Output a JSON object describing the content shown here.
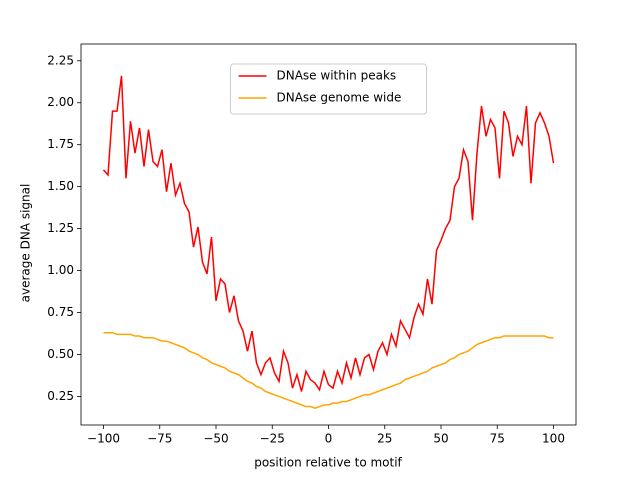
{
  "chart_data": {
    "type": "line",
    "x_label": "position relative to motif",
    "y_label": "average DNA signal",
    "x": [
      -100,
      -98,
      -96,
      -94,
      -92,
      -90,
      -88,
      -86,
      -84,
      -82,
      -80,
      -78,
      -76,
      -74,
      -72,
      -70,
      -68,
      -66,
      -64,
      -62,
      -60,
      -58,
      -56,
      -54,
      -52,
      -50,
      -48,
      -46,
      -44,
      -42,
      -40,
      -38,
      -36,
      -34,
      -32,
      -30,
      -28,
      -26,
      -24,
      -22,
      -20,
      -18,
      -16,
      -14,
      -12,
      -10,
      -8,
      -6,
      -4,
      -2,
      0,
      2,
      4,
      6,
      8,
      10,
      12,
      14,
      16,
      18,
      20,
      22,
      24,
      26,
      28,
      30,
      32,
      34,
      36,
      38,
      40,
      42,
      44,
      46,
      48,
      50,
      52,
      54,
      56,
      58,
      60,
      62,
      64,
      66,
      68,
      70,
      72,
      74,
      76,
      78,
      80,
      82,
      84,
      86,
      88,
      90,
      92,
      94,
      96,
      98,
      100
    ],
    "series": [
      {
        "name": "DNAse within peaks",
        "color": "#ff0000",
        "values": [
          1.6,
          1.57,
          1.95,
          1.95,
          2.16,
          1.55,
          1.89,
          1.7,
          1.85,
          1.62,
          1.84,
          1.65,
          1.62,
          1.72,
          1.47,
          1.64,
          1.45,
          1.52,
          1.4,
          1.35,
          1.14,
          1.26,
          1.05,
          0.98,
          1.2,
          0.82,
          0.95,
          0.92,
          0.75,
          0.85,
          0.7,
          0.64,
          0.52,
          0.64,
          0.45,
          0.38,
          0.45,
          0.48,
          0.39,
          0.34,
          0.52,
          0.45,
          0.3,
          0.38,
          0.28,
          0.4,
          0.35,
          0.33,
          0.29,
          0.4,
          0.32,
          0.3,
          0.4,
          0.33,
          0.45,
          0.36,
          0.48,
          0.38,
          0.48,
          0.5,
          0.41,
          0.52,
          0.57,
          0.5,
          0.62,
          0.55,
          0.7,
          0.65,
          0.6,
          0.72,
          0.8,
          0.74,
          0.95,
          0.8,
          1.12,
          1.18,
          1.25,
          1.3,
          1.5,
          1.55,
          1.72,
          1.65,
          1.3,
          1.7,
          1.98,
          1.8,
          1.9,
          1.85,
          1.55,
          1.95,
          1.88,
          1.68,
          1.8,
          1.75,
          1.98,
          1.52,
          1.88,
          1.94,
          1.88,
          1.8,
          1.64
        ]
      },
      {
        "name": "DNAse genome wide",
        "color": "#ffa500",
        "values": [
          0.63,
          0.63,
          0.63,
          0.62,
          0.62,
          0.62,
          0.62,
          0.61,
          0.61,
          0.6,
          0.6,
          0.6,
          0.59,
          0.58,
          0.58,
          0.57,
          0.56,
          0.55,
          0.54,
          0.52,
          0.51,
          0.5,
          0.48,
          0.47,
          0.45,
          0.44,
          0.43,
          0.42,
          0.4,
          0.39,
          0.38,
          0.36,
          0.34,
          0.33,
          0.31,
          0.3,
          0.28,
          0.27,
          0.26,
          0.25,
          0.24,
          0.23,
          0.22,
          0.21,
          0.2,
          0.19,
          0.19,
          0.18,
          0.19,
          0.2,
          0.2,
          0.21,
          0.21,
          0.22,
          0.22,
          0.23,
          0.24,
          0.25,
          0.26,
          0.26,
          0.27,
          0.28,
          0.29,
          0.3,
          0.31,
          0.32,
          0.33,
          0.35,
          0.36,
          0.37,
          0.38,
          0.39,
          0.4,
          0.42,
          0.43,
          0.44,
          0.45,
          0.47,
          0.48,
          0.5,
          0.51,
          0.52,
          0.54,
          0.56,
          0.57,
          0.58,
          0.59,
          0.6,
          0.6,
          0.61,
          0.61,
          0.61,
          0.61,
          0.61,
          0.61,
          0.61,
          0.61,
          0.61,
          0.61,
          0.6,
          0.6
        ]
      }
    ],
    "xlim": [
      -110,
      110
    ],
    "ylim": [
      0.08,
      2.35
    ],
    "xticks": [
      {
        "value": -100,
        "label": "−100"
      },
      {
        "value": -75,
        "label": "−75"
      },
      {
        "value": -50,
        "label": "−50"
      },
      {
        "value": -25,
        "label": "−25"
      },
      0,
      25,
      50,
      75,
      100
    ],
    "yticks": [
      {
        "value": 0.25,
        "label": "0.25"
      },
      {
        "value": 0.5,
        "label": "0.50"
      },
      {
        "value": 0.75,
        "label": "0.75"
      },
      {
        "value": 1,
        "label": "1.00"
      },
      {
        "value": 1.25,
        "label": "1.25"
      },
      {
        "value": 1.5,
        "label": "1.50"
      },
      {
        "value": 1.75,
        "label": "1.75"
      },
      {
        "value": 2,
        "label": "2.00"
      },
      {
        "value": 2.25,
        "label": "2.25"
      }
    ],
    "legend": "upper center"
  }
}
